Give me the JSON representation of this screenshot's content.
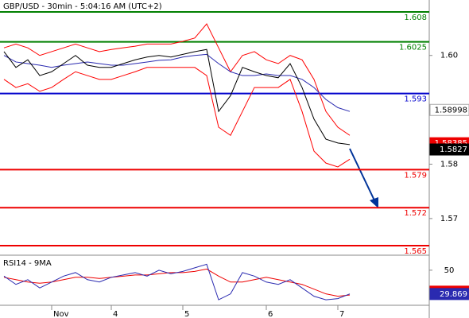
{
  "chart_data": [
    {
      "type": "line",
      "title": "GBP/USD - 30min - 5:04:16 AM (UTC+2)",
      "ylim": [
        1.5634,
        1.6102
      ],
      "yticks": [
        {
          "value": 1.6,
          "label": "1.60"
        },
        1.58,
        1.57
      ],
      "series": [
        {
          "color": "#ff0000",
          "values": [
            1.6014,
            1.6021,
            1.6014,
            1.6,
            1.6007,
            1.6014,
            1.6021,
            1.6014,
            1.6007,
            1.6011,
            1.6014,
            1.6017,
            1.6021,
            1.6021,
            1.6021,
            1.6026,
            1.6032,
            1.6058,
            1.6014,
            1.597,
            1.6,
            1.6007,
            1.5992,
            1.5985,
            1.6,
            1.5992,
            1.5956,
            1.5897,
            1.5868,
            1.5853
          ]
        },
        {
          "color": "#ff0000",
          "values": [
            1.5956,
            1.5941,
            1.5948,
            1.5934,
            1.5941,
            1.5956,
            1.597,
            1.5963,
            1.5956,
            1.5956,
            1.5963,
            1.597,
            1.5978,
            1.5978,
            1.5978,
            1.5978,
            1.5978,
            1.5963,
            1.5868,
            1.5853,
            1.5897,
            1.5941,
            1.5941,
            1.5941,
            1.5956,
            1.5897,
            1.5824,
            1.5802,
            1.5795,
            1.5809
          ]
        },
        {
          "color": "#2a2ab0",
          "values": [
            1.6,
            1.5988,
            1.5985,
            1.5982,
            1.5978,
            1.5982,
            1.5985,
            1.5988,
            1.5985,
            1.5982,
            1.5982,
            1.5985,
            1.5988,
            1.5991,
            1.5992,
            1.5997,
            1.6,
            1.6002,
            1.5985,
            1.597,
            1.5963,
            1.5963,
            1.5966,
            1.5963,
            1.5963,
            1.5956,
            1.5941,
            1.5919,
            1.5904,
            1.5897
          ]
        },
        {
          "color": "#000000",
          "values": [
            1.6007,
            1.5978,
            1.5992,
            1.5963,
            1.597,
            1.5985,
            1.6,
            1.5982,
            1.5978,
            1.5978,
            1.5985,
            1.5992,
            1.5997,
            1.6,
            1.5997,
            1.6002,
            1.6007,
            1.6011,
            1.5897,
            1.5926,
            1.5978,
            1.597,
            1.5963,
            1.5959,
            1.5985,
            1.5941,
            1.5883,
            1.5846,
            1.5839,
            1.5836
          ]
        }
      ],
      "levels": [
        {
          "value": 1.608,
          "color": "#008000"
        },
        {
          "value": 1.6025,
          "color": "#008000"
        },
        {
          "value": 1.593,
          "color": "#0000cc"
        },
        {
          "value": 1.579,
          "color": "#ee0000"
        },
        {
          "value": 1.572,
          "color": "#ee0000"
        },
        {
          "value": 1.565,
          "color": "#ee0000"
        }
      ],
      "markers": [
        {
          "value": 1.58998,
          "color": "#ffffff",
          "text_color": "#000000"
        },
        {
          "value": 1.58385,
          "color": "#ee0000",
          "text_color": "#ffffff"
        },
        {
          "value": 1.5827,
          "color": "#000000",
          "text_color": "#ffffff"
        }
      ]
    },
    {
      "type": "line",
      "title": "RSI14 - 9MA",
      "ylim": [
        15,
        62
      ],
      "yticks": [
        50
      ],
      "categories": [
        null,
        null,
        null,
        null,
        "Nov",
        null,
        null,
        null,
        null,
        "4",
        null,
        null,
        null,
        null,
        null,
        "5",
        null,
        null,
        null,
        null,
        null,
        null,
        "6",
        null,
        null,
        null,
        null,
        null,
        "7",
        null
      ],
      "series": [
        {
          "color": "#ee0000",
          "values": [
            44,
            42,
            40,
            39,
            40,
            42,
            44,
            44,
            43,
            44,
            45,
            46,
            46,
            47,
            48,
            48,
            49,
            51,
            45,
            40,
            40,
            42,
            44,
            42,
            40,
            38,
            34,
            30,
            28,
            29
          ]
        },
        {
          "color": "#2a2ab0",
          "values": [
            45,
            38,
            42,
            35,
            40,
            45,
            48,
            42,
            40,
            44,
            46,
            48,
            45,
            50,
            47,
            49,
            52,
            55,
            25,
            30,
            48,
            45,
            40,
            38,
            42,
            35,
            28,
            25,
            26,
            30
          ]
        }
      ],
      "markers": [
        {
          "value": 31.8803,
          "color": "#ee0000",
          "text_color": "#ffffff"
        },
        {
          "value": 29.869,
          "color": "#2a2ab0",
          "text_color": "#ffffff"
        }
      ]
    }
  ]
}
